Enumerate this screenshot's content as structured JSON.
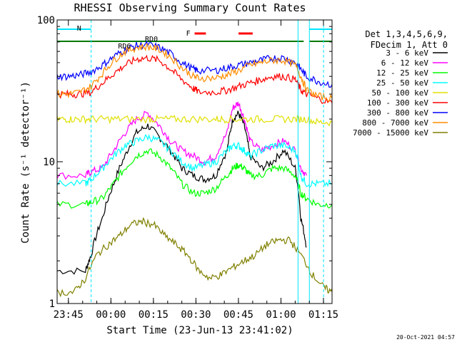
{
  "chart_data": {
    "type": "line",
    "title": "RHESSI Observing Summary Count Rates",
    "xlabel": "Start Time (23-Jun-13 23:41:02)",
    "ylabel": "Count Rate (s⁻¹ detector⁻¹)",
    "x_unit": "minutes after 23:41:02",
    "xlim": [
      0,
      97
    ],
    "ylim": [
      1,
      100
    ],
    "yscale": "log",
    "x_tick_labels": [
      "23:45",
      "00:00",
      "00:15",
      "00:30",
      "00:45",
      "01:00",
      "01:15"
    ],
    "x_tick_minutes": [
      3.97,
      18.97,
      33.97,
      48.97,
      63.97,
      78.97,
      93.97
    ],
    "y_tick_labels": [
      "1",
      "10",
      "100"
    ],
    "y_tick_values": [
      1,
      10,
      100
    ],
    "legend_header": [
      "Det 1,3,4,5,6,9,",
      "FDecim 1, Att 0"
    ],
    "legend_placement": "right",
    "timestamp": "20-Oct-2021 04:57",
    "annotations": [
      {
        "text": "N",
        "color": "#00e5ff"
      },
      {
        "text": "RD0",
        "color": "#007a00"
      },
      {
        "text": "RD6",
        "color": "#007a00"
      },
      {
        "text": "F",
        "color": "#ff0000"
      }
    ],
    "night_boundaries_min": [
      {
        "start": 0,
        "end": 12
      },
      {
        "start": 89,
        "end": 97
      }
    ],
    "saa_or_attenuator_lines_min": [
      12,
      85,
      89,
      94
    ],
    "series": [
      {
        "name": "3 - 6 keV",
        "color": "#000000",
        "x": [
          0,
          10,
          12,
          16,
          20,
          24,
          28,
          32,
          36,
          40,
          44,
          48,
          52,
          56,
          60,
          62,
          64,
          66,
          68,
          72,
          76,
          80,
          84,
          86,
          88
        ],
        "y": [
          1.7,
          1.7,
          2.2,
          4,
          7,
          11,
          16,
          18,
          15,
          12,
          9,
          8,
          7.5,
          8,
          12,
          20,
          22,
          18,
          11,
          9,
          10,
          12,
          9,
          4,
          2.5
        ]
      },
      {
        "name": "6 - 12 keV",
        "color": "#ff00ff",
        "x": [
          0,
          10,
          12,
          16,
          20,
          24,
          28,
          32,
          36,
          40,
          44,
          48,
          52,
          56,
          60,
          62,
          64,
          66,
          68,
          72,
          76,
          80,
          84,
          86,
          88
        ],
        "y": [
          8,
          8,
          8.5,
          9,
          12,
          16,
          20,
          22,
          18,
          14,
          12,
          11,
          10,
          11,
          16,
          24,
          26,
          20,
          14,
          12,
          13,
          14,
          12,
          9,
          8
        ]
      },
      {
        "name": "12 - 25 keV",
        "color": "#00ff00",
        "x": [
          0,
          10,
          12,
          16,
          20,
          24,
          28,
          32,
          36,
          40,
          44,
          48,
          52,
          56,
          60,
          62,
          64,
          66,
          68,
          72,
          76,
          80,
          84,
          86,
          88,
          92,
          97
        ],
        "y": [
          5,
          5,
          5.2,
          5.5,
          7,
          9,
          11,
          12,
          11,
          9,
          7,
          6,
          6,
          6.5,
          8,
          9,
          9.5,
          9,
          8,
          8,
          9,
          9,
          8,
          6,
          5.5,
          5,
          5
        ]
      },
      {
        "name": "25 - 50 keV",
        "color": "#00ffff",
        "x": [
          0,
          10,
          12,
          16,
          20,
          24,
          28,
          32,
          36,
          40,
          44,
          48,
          52,
          56,
          60,
          62,
          64,
          66,
          68,
          72,
          76,
          80,
          84,
          86,
          88,
          92,
          97
        ],
        "y": [
          7,
          7,
          7.5,
          9,
          11,
          13,
          14,
          15,
          14,
          12,
          10,
          9,
          9.5,
          10,
          12,
          13,
          13,
          12,
          11,
          12,
          13,
          13,
          12,
          8,
          7,
          7,
          7
        ]
      },
      {
        "name": "50 - 100 keV",
        "color": "#e0e000",
        "x": [
          0,
          4,
          8,
          12,
          18,
          24,
          32,
          36,
          42,
          48,
          56,
          60,
          66,
          72,
          78,
          84,
          88,
          92,
          97
        ],
        "y": [
          20,
          20,
          20,
          20,
          20,
          20,
          20,
          20,
          20,
          20,
          20,
          20,
          20,
          20,
          20,
          20,
          20,
          19,
          19
        ]
      },
      {
        "name": "100 - 300 keV",
        "color": "#ff0000",
        "x": [
          0,
          4,
          8,
          12,
          16,
          20,
          24,
          28,
          32,
          36,
          40,
          44,
          48,
          50,
          56,
          60,
          64,
          68,
          72,
          76,
          80,
          84,
          86,
          88,
          92,
          97
        ],
        "y": [
          30,
          30,
          30,
          31,
          36,
          42,
          48,
          53,
          54,
          52,
          45,
          38,
          33,
          31,
          31,
          32,
          34,
          36,
          38,
          40,
          40,
          38,
          32,
          30,
          28,
          26
        ]
      },
      {
        "name": "300 - 800 keV",
        "color": "#0000ff",
        "x": [
          0,
          4,
          8,
          12,
          16,
          20,
          24,
          28,
          32,
          36,
          40,
          44,
          48,
          50,
          56,
          60,
          64,
          68,
          72,
          76,
          80,
          84,
          86,
          88,
          92,
          97
        ],
        "y": [
          40,
          40,
          41,
          43,
          48,
          55,
          62,
          66,
          67,
          64,
          58,
          50,
          45,
          44,
          44,
          46,
          48,
          50,
          52,
          54,
          54,
          50,
          45,
          40,
          37,
          35
        ]
      },
      {
        "name": "800 - 7000 keV",
        "color": "#ff8c00",
        "x": [
          0,
          4,
          8,
          12,
          16,
          20,
          24,
          28,
          32,
          36,
          40,
          44,
          48,
          50,
          56,
          60,
          64,
          68,
          72,
          76,
          80,
          84,
          86,
          88,
          92,
          97
        ],
        "y": [
          30,
          30,
          31,
          34,
          42,
          52,
          60,
          64,
          65,
          62,
          55,
          46,
          40,
          39,
          39,
          41,
          44,
          48,
          50,
          52,
          52,
          48,
          40,
          32,
          29,
          28
        ]
      },
      {
        "name": "7000 - 15000 keV",
        "color": "#808000",
        "x": [
          0,
          6,
          10,
          14,
          18,
          22,
          26,
          30,
          34,
          38,
          42,
          46,
          50,
          54,
          58,
          62,
          66,
          70,
          74,
          78,
          82,
          86,
          90,
          94,
          97
        ],
        "y": [
          1.2,
          1.2,
          1.5,
          2.2,
          2.6,
          3,
          3.6,
          3.8,
          3.6,
          3,
          2.6,
          2.2,
          1.7,
          1.5,
          1.6,
          1.8,
          2,
          2.2,
          2.6,
          2.8,
          2.8,
          2.2,
          1.6,
          1.3,
          1.2
        ]
      }
    ],
    "legend_entries": [
      "3 - 6 keV",
      "6 - 12 keV",
      "12 - 25 keV",
      "25 - 50 keV",
      "50 - 100 keV",
      "100 - 300 keV",
      "300 - 800 keV",
      "800 - 7000 keV",
      "7000 - 15000 keV"
    ],
    "legend_colors": [
      "#000000",
      "#ff00ff",
      "#00ff00",
      "#00ffff",
      "#e0e000",
      "#ff0000",
      "#0000ff",
      "#ff8c00",
      "#808000"
    ]
  }
}
